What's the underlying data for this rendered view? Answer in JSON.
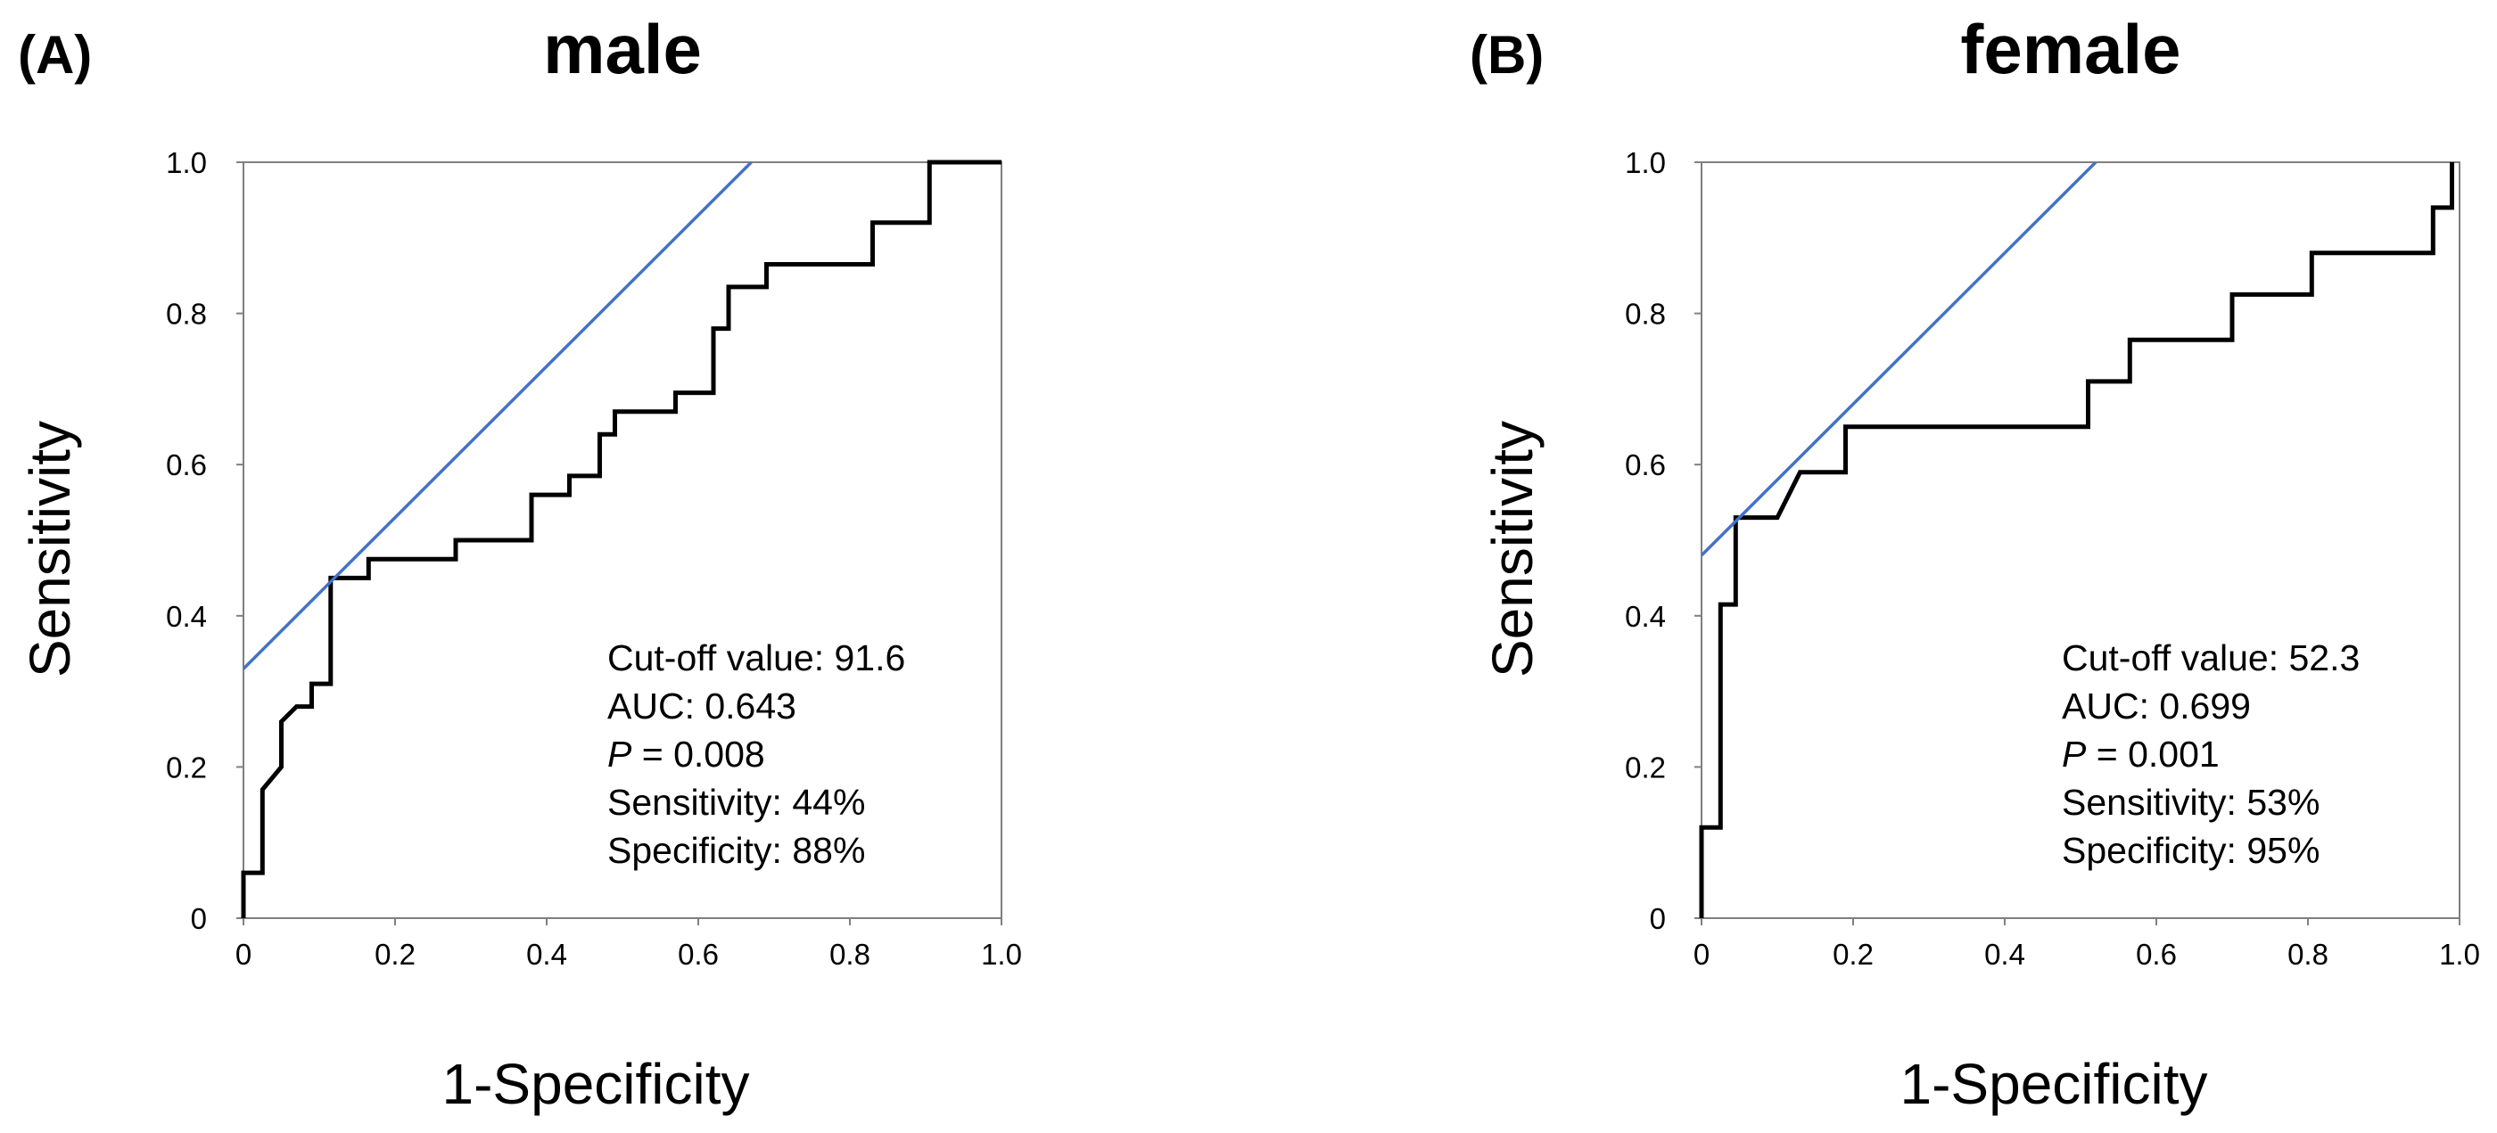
{
  "chart_data": [
    {
      "type": "line",
      "panel_label": "(A)",
      "title": "male",
      "xlabel": "1-Specificity",
      "ylabel": "Sensitivity",
      "xlim": [
        0,
        1
      ],
      "ylim": [
        0,
        1
      ],
      "x_ticks": [
        "0",
        "0.2",
        "0.4",
        "0.6",
        "0.8",
        "1.0"
      ],
      "y_ticks": [
        "0",
        "0.2",
        "0.4",
        "0.6",
        "0.8",
        "1.0"
      ],
      "grid": false,
      "legend": "none",
      "annotations": {
        "cutoff": "Cut-off value: 91.6",
        "auc": "AUC: 0.643",
        "p_symbol": "P",
        "p_value": " = 0.008",
        "sensitivity": "Sensitivity: 44%",
        "specificity": "Specificity: 88%",
        "position": "bottom-right"
      },
      "series": [
        {
          "name": "ROC curve",
          "color": "#000000",
          "points": [
            [
              0,
              0
            ],
            [
              0,
              0.06
            ],
            [
              0.025,
              0.06
            ],
            [
              0.025,
              0.17
            ],
            [
              0.05,
              0.2
            ],
            [
              0.05,
              0.26
            ],
            [
              0.07,
              0.28
            ],
            [
              0.09,
              0.28
            ],
            [
              0.09,
              0.31
            ],
            [
              0.115,
              0.31
            ],
            [
              0.115,
              0.45
            ],
            [
              0.165,
              0.45
            ],
            [
              0.165,
              0.475
            ],
            [
              0.28,
              0.475
            ],
            [
              0.28,
              0.5
            ],
            [
              0.38,
              0.5
            ],
            [
              0.38,
              0.56
            ],
            [
              0.43,
              0.56
            ],
            [
              0.43,
              0.585
            ],
            [
              0.47,
              0.585
            ],
            [
              0.47,
              0.64
            ],
            [
              0.49,
              0.64
            ],
            [
              0.49,
              0.67
            ],
            [
              0.57,
              0.67
            ],
            [
              0.57,
              0.695
            ],
            [
              0.62,
              0.695
            ],
            [
              0.62,
              0.78
            ],
            [
              0.64,
              0.78
            ],
            [
              0.64,
              0.835
            ],
            [
              0.69,
              0.835
            ],
            [
              0.69,
              0.865
            ],
            [
              0.83,
              0.865
            ],
            [
              0.83,
              0.92
            ],
            [
              0.905,
              0.92
            ],
            [
              0.905,
              1.0
            ],
            [
              1.0,
              1.0
            ]
          ]
        },
        {
          "name": "Tangent line",
          "color": "#4472C4",
          "points": [
            [
              0,
              0.33
            ],
            [
              0.67,
              1.0
            ]
          ]
        }
      ]
    },
    {
      "type": "line",
      "panel_label": "(B)",
      "title": "female",
      "xlabel": "1-Specificity",
      "ylabel": "Sensitivity",
      "xlim": [
        0,
        1
      ],
      "ylim": [
        0,
        1
      ],
      "x_ticks": [
        "0",
        "0.2",
        "0.4",
        "0.6",
        "0.8",
        "1.0"
      ],
      "y_ticks": [
        "0",
        "0.2",
        "0.4",
        "0.6",
        "0.8",
        "1.0"
      ],
      "grid": false,
      "legend": "none",
      "annotations": {
        "cutoff": "Cut-off value: 52.3",
        "auc": "AUC: 0.699",
        "p_symbol": "P",
        "p_value": " = 0.001",
        "sensitivity": "Sensitivity: 53%",
        "specificity": "Specificity: 95%",
        "position": "bottom-right"
      },
      "series": [
        {
          "name": "ROC curve",
          "color": "#000000",
          "points": [
            [
              0,
              0
            ],
            [
              0,
              0.12
            ],
            [
              0.025,
              0.12
            ],
            [
              0.025,
              0.415
            ],
            [
              0.045,
              0.415
            ],
            [
              0.045,
              0.53
            ],
            [
              0.1,
              0.53
            ],
            [
              0.13,
              0.59
            ],
            [
              0.19,
              0.59
            ],
            [
              0.19,
              0.65
            ],
            [
              0.51,
              0.65
            ],
            [
              0.51,
              0.71
            ],
            [
              0.565,
              0.71
            ],
            [
              0.565,
              0.765
            ],
            [
              0.7,
              0.765
            ],
            [
              0.7,
              0.825
            ],
            [
              0.805,
              0.825
            ],
            [
              0.805,
              0.88
            ],
            [
              0.965,
              0.88
            ],
            [
              0.965,
              0.94
            ],
            [
              0.99,
              0.94
            ],
            [
              0.99,
              1.0
            ]
          ]
        },
        {
          "name": "Tangent line",
          "color": "#4472C4",
          "points": [
            [
              0,
              0.48
            ],
            [
              0.52,
              1.0
            ]
          ]
        }
      ]
    }
  ]
}
